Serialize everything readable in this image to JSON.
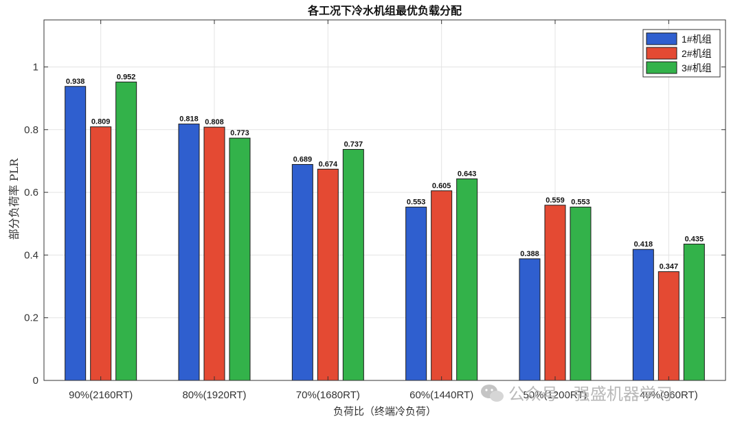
{
  "chart_data": {
    "type": "bar",
    "title": "各工况下冷水机组最优负载分配",
    "xlabel": "负荷比（终端冷负荷）",
    "ylabel": "部分负荷率 PLR",
    "categories": [
      "90%(2160RT)",
      "80%(1920RT)",
      "70%(1680RT)",
      "60%(1440RT)",
      "50%(1200RT)",
      "40%(960RT)"
    ],
    "series": [
      {
        "name": "1#机组",
        "color": "#2f5fcf",
        "values": [
          0.938,
          0.818,
          0.689,
          0.553,
          0.388,
          0.418
        ]
      },
      {
        "name": "2#机组",
        "color": "#e44a33",
        "values": [
          0.809,
          0.808,
          0.674,
          0.605,
          0.559,
          0.347
        ]
      },
      {
        "name": "3#机组",
        "color": "#33b24a",
        "values": [
          0.952,
          0.773,
          0.737,
          0.643,
          0.553,
          0.435
        ]
      }
    ],
    "ylim": [
      0,
      1.15
    ],
    "yticks": [
      0,
      0.2,
      0.4,
      0.6,
      0.8,
      1
    ],
    "grid": true,
    "legend_position": "top-right"
  },
  "watermark": {
    "icon": "wechat-icon",
    "text": "公众号 · 强盛机器学习"
  }
}
